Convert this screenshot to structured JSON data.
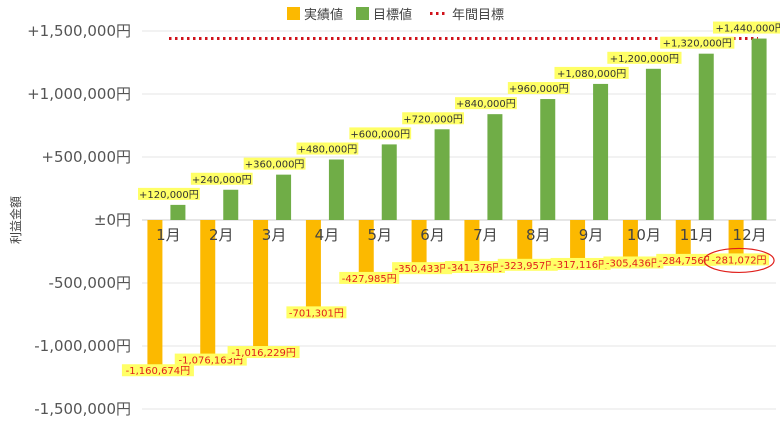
{
  "chart_data": {
    "type": "bar",
    "ylabel": "利益金額",
    "ylim": [
      -1500000,
      1500000
    ],
    "yticks": [
      1500000,
      1000000,
      500000,
      0,
      -500000,
      -1000000,
      -1500000
    ],
    "ytick_labels": [
      "+1,500,000円",
      "+1,000,000円",
      "+500,000円",
      "±0円",
      "-500,000円",
      "-1,000,000円",
      "-1,500,000円"
    ],
    "categories": [
      "1月",
      "2月",
      "3月",
      "4月",
      "5月",
      "6月",
      "7月",
      "8月",
      "9月",
      "10月",
      "11月",
      "12月"
    ],
    "series": [
      {
        "name": "実績値",
        "color": "#fcb900",
        "values": [
          -1160674,
          -1076163,
          -1016229,
          -701301,
          -427985,
          -350433,
          -341376,
          -323957,
          -317116,
          -305436,
          -284756,
          -281072
        ],
        "labels": [
          "-1,160,674円",
          "-1,076,163円",
          "-1,016,229円",
          "-701,301円",
          "-427,985円",
          "-350,433円",
          "-341,376円",
          "-323,957円",
          "-317,116円",
          "-305,436円",
          "-284,756円",
          "-281,072円"
        ]
      },
      {
        "name": "目標値",
        "color": "#70ad47",
        "values": [
          120000,
          240000,
          360000,
          480000,
          600000,
          720000,
          840000,
          960000,
          1080000,
          1200000,
          1320000,
          1440000
        ],
        "labels": [
          "+120,000円",
          "+240,000円",
          "+360,000円",
          "+480,000円",
          "+600,000円",
          "+720,000円",
          "+840,000円",
          "+960,000円",
          "+1,080,000円",
          "+1,200,000円",
          "+1,320,000円",
          "+1,440,000円"
        ]
      }
    ],
    "target_line": {
      "name": "年間目標",
      "value": 1440000,
      "color": "#d0121b"
    },
    "highlight_color": "#e0201c",
    "label_bg": "#ffff66",
    "legend": "top",
    "grid": true
  }
}
